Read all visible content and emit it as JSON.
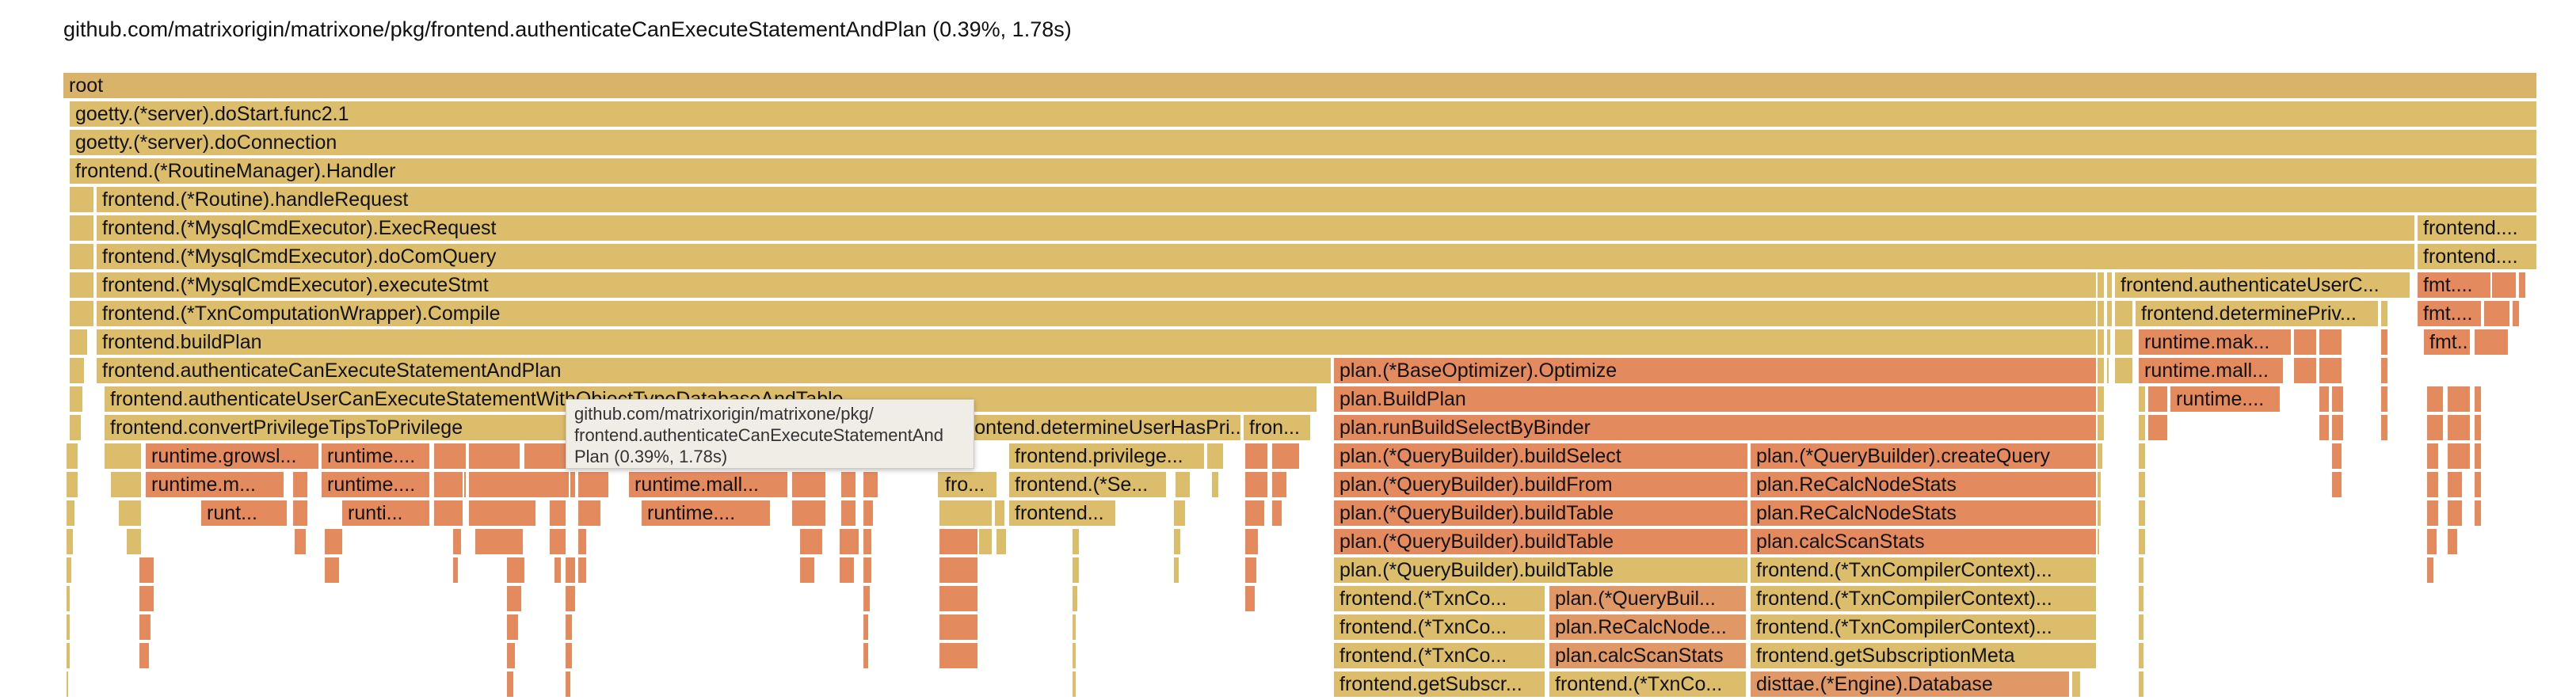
{
  "title": "github.com/matrixorigin/matrixone/pkg/frontend.authenticateCanExecuteStatementAndPlan (0.39%, 1.78s)",
  "colors": {
    "root": "#d9b36a",
    "yellow": "#dbbd6b",
    "orange": "#e09866",
    "salmon": "#e38a5e",
    "background": "#ffffff"
  },
  "tooltip": {
    "line1": "github.com/matrixorigin/matrixone/pkg/",
    "line2": "frontend.authenticateCanExecuteStatementAnd",
    "line3": "Plan (0.39%, 1.78s)"
  },
  "frames": [
    {
      "label": "root",
      "depth": 0
    },
    {
      "label": "goetty.(*server).doStart.func2.1",
      "depth": 1
    },
    {
      "label": "goetty.(*server).doConnection",
      "depth": 2
    },
    {
      "label": "frontend.(*RoutineManager).Handler",
      "depth": 3
    },
    {
      "label": "frontend.(*Routine).handleRequest",
      "depth": 4
    },
    {
      "label": "frontend.(*MysqlCmdExecutor).ExecRequest",
      "depth": 5
    },
    {
      "label": "frontend....",
      "depth": 5
    },
    {
      "label": "frontend.(*MysqlCmdExecutor).doComQuery",
      "depth": 6
    },
    {
      "label": "frontend....",
      "depth": 6
    },
    {
      "label": "frontend.(*MysqlCmdExecutor).executeStmt",
      "depth": 7
    },
    {
      "label": "frontend.authenticateUserC...",
      "depth": 7
    },
    {
      "label": "fmt....",
      "depth": 7
    },
    {
      "label": "frontend.(*TxnComputationWrapper).Compile",
      "depth": 8
    },
    {
      "label": "frontend.determinePriv...",
      "depth": 8
    },
    {
      "label": "fmt....",
      "depth": 8
    },
    {
      "label": "frontend.buildPlan",
      "depth": 9
    },
    {
      "label": "runtime.mak...",
      "depth": 9
    },
    {
      "label": "fmt...",
      "depth": 9
    },
    {
      "label": "frontend.authenticateCanExecuteStatementAndPlan",
      "depth": 10
    },
    {
      "label": "plan.(*BaseOptimizer).Optimize",
      "depth": 10
    },
    {
      "label": "runtime.mall...",
      "depth": 10
    },
    {
      "label": "frontend.authenticateUserCanExecuteStatementWithObjectTypeDatabaseAndTable",
      "depth": 11
    },
    {
      "label": "plan.BuildPlan",
      "depth": 11
    },
    {
      "label": "runtime....",
      "depth": 11
    },
    {
      "label": "frontend.convertPrivilegeTipsToPrivilege",
      "depth": 12
    },
    {
      "label": "frontend.determineUserHasPri...",
      "depth": 12
    },
    {
      "label": "fron...",
      "depth": 12
    },
    {
      "label": "plan.runBuildSelectByBinder",
      "depth": 12
    },
    {
      "label": "runtime.growsl...",
      "depth": 13
    },
    {
      "label": "runtime....",
      "depth": 13
    },
    {
      "label": "frontend.privilege...",
      "depth": 13
    },
    {
      "label": "plan.(*QueryBuilder).buildSelect",
      "depth": 13
    },
    {
      "label": "plan.(*QueryBuilder).createQuery",
      "depth": 13
    },
    {
      "label": "runtime.m...",
      "depth": 14
    },
    {
      "label": "runtime....",
      "depth": 14
    },
    {
      "label": "runtime.mall...",
      "depth": 14
    },
    {
      "label": "fro...",
      "depth": 14
    },
    {
      "label": "frontend.(*Se...",
      "depth": 14
    },
    {
      "label": "plan.(*QueryBuilder).buildFrom",
      "depth": 14
    },
    {
      "label": "plan.ReCalcNodeStats",
      "depth": 14
    },
    {
      "label": "runt...",
      "depth": 15
    },
    {
      "label": "runti...",
      "depth": 15
    },
    {
      "label": "runtime....",
      "depth": 15
    },
    {
      "label": "frontend...",
      "depth": 15
    },
    {
      "label": "plan.(*QueryBuilder).buildTable",
      "depth": 15
    },
    {
      "label": "plan.ReCalcNodeStats",
      "depth": 15
    },
    {
      "label": "plan.(*QueryBuilder).buildTable",
      "depth": 16
    },
    {
      "label": "plan.calcScanStats",
      "depth": 16
    },
    {
      "label": "plan.(*QueryBuilder).buildTable",
      "depth": 17
    },
    {
      "label": "frontend.(*TxnCompilerContext)...",
      "depth": 17
    },
    {
      "label": "frontend.(*TxnCo...",
      "depth": 18
    },
    {
      "label": "plan.(*QueryBuil...",
      "depth": 18
    },
    {
      "label": "frontend.(*TxnCompilerContext)...",
      "depth": 18
    },
    {
      "label": "frontend.(*TxnCo...",
      "depth": 19
    },
    {
      "label": "plan.ReCalcNode...",
      "depth": 19
    },
    {
      "label": "frontend.(*TxnCompilerContext)...",
      "depth": 19
    },
    {
      "label": "frontend.(*TxnCo...",
      "depth": 20
    },
    {
      "label": "plan.calcScanStats",
      "depth": 20
    },
    {
      "label": "frontend.getSubscriptionMeta",
      "depth": 20
    },
    {
      "label": "frontend.getSubscr...",
      "depth": 21
    },
    {
      "label": "frontend.(*TxnCo...",
      "depth": 21
    },
    {
      "label": "disttae.(*Engine).Database",
      "depth": 21
    }
  ]
}
